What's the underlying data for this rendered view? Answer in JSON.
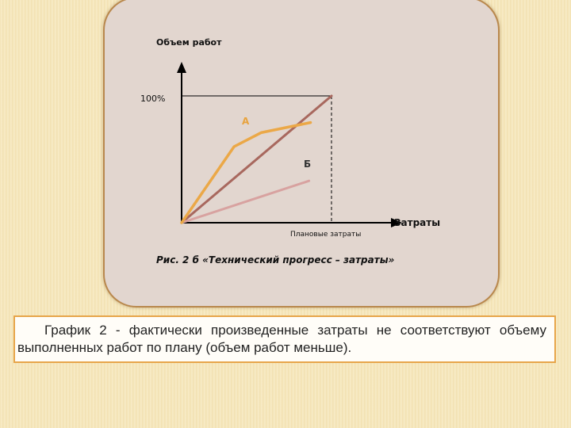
{
  "chart_data": {
    "type": "line",
    "ylabel": "Объем работ",
    "xlabel": "Затраты",
    "y_tick_label": "100%",
    "x_marker_label": "Плановые затраты",
    "caption": "Рис. 2 б «Технический прогресс – затраты»",
    "xlim": [
      0,
      100
    ],
    "ylim": [
      0,
      100
    ],
    "grid": false,
    "series": [
      {
        "key": "plan",
        "color": "#a8685e",
        "points": [
          [
            0,
            0
          ],
          [
            100,
            100
          ]
        ]
      },
      {
        "name": "А",
        "color": "#eba847",
        "points": [
          [
            0,
            0
          ],
          [
            35,
            60
          ],
          [
            53,
            71
          ],
          [
            86,
            79
          ]
        ]
      },
      {
        "name": "Б",
        "color": "#d8a2a0",
        "points": [
          [
            0,
            0
          ],
          [
            85,
            33
          ]
        ]
      }
    ]
  },
  "text_box": "График 2 - фактически произведенные затраты не соответствуют объему выполненных работ по плану (объем работ меньше)."
}
